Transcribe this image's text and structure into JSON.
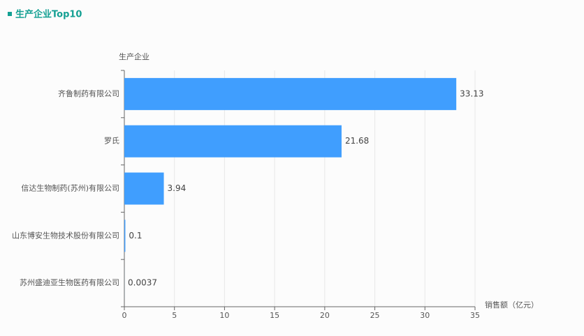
{
  "title": "生产企业Top10",
  "chart_data": {
    "type": "bar",
    "horizontal": true,
    "y_axis_label": "生产企业",
    "x_axis_label": "销售额（亿元）",
    "categories": [
      "齐鲁制药有限公司",
      "罗氏",
      "信达生物制药(苏州)有限公司",
      "山东博安生物技术股份有限公司",
      "苏州盛迪亚生物医药有限公司"
    ],
    "values": [
      33.13,
      21.68,
      3.94,
      0.1,
      0.0037
    ],
    "color": "#409efe",
    "xlim": [
      0,
      35
    ],
    "xticks": [
      0,
      5,
      10,
      15,
      20,
      25,
      30,
      35
    ],
    "grid": true
  }
}
